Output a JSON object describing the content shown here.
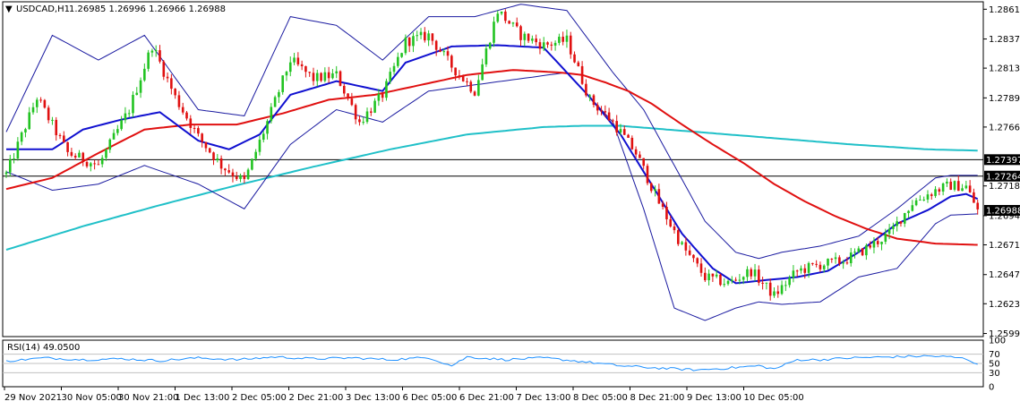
{
  "header": {
    "arrow": "▼",
    "symbol": "USDCAD,H1",
    "ohlc": "1.26985 1.26996 1.26966 1.26988"
  },
  "rsi_header": "RSI(14) 49.0500",
  "colors": {
    "bull": "#22c322",
    "bear": "#e01010",
    "bb": "#1a1aa0",
    "ma_fast": "#1010d0",
    "ma_slow": "#e01010",
    "ma_long": "#20c0c8",
    "rsi": "#1e90ff",
    "price_tag_bg": "#000000",
    "price_tag_fg": "#ffffff"
  },
  "chart_data": {
    "type": "candlestick",
    "symbol": "USDCAD",
    "timeframe": "H1",
    "x_labels": [
      "29 Nov 2021",
      "30 Nov 05:00",
      "30 Nov 21:00",
      "1 Dec 13:00",
      "2 Dec 05:00",
      "2 Dec 21:00",
      "3 Dec 13:00",
      "6 Dec 05:00",
      "6 Dec 21:00",
      "7 Dec 13:00",
      "8 Dec 05:00",
      "8 Dec 21:00",
      "9 Dec 13:00",
      "10 Dec 05:00"
    ],
    "y_ticks": [
      "1.28610",
      "1.28370",
      "1.28135",
      "1.27895",
      "1.27660",
      "1.27185",
      "1.26945",
      "1.26710",
      "1.26470",
      "1.26235",
      "1.25995"
    ],
    "ylim": [
      1.2597,
      1.2867
    ],
    "horizontal_lines": [
      1.27397,
      1.27264
    ],
    "price_tags": [
      "1.27397",
      "1.27264",
      "1.26988"
    ],
    "current_price": 1.26988,
    "overlays": [
      "Bollinger Bands",
      "Moving Average (blue)",
      "Moving Average (red)",
      "Moving Average (cyan)"
    ],
    "close_path": [
      [
        0,
        1.2728
      ],
      [
        8,
        1.279
      ],
      [
        16,
        1.2745
      ],
      [
        24,
        1.2735
      ],
      [
        32,
        1.278
      ],
      [
        38,
        1.2832
      ],
      [
        44,
        1.279
      ],
      [
        50,
        1.2758
      ],
      [
        56,
        1.2735
      ],
      [
        62,
        1.2722
      ],
      [
        68,
        1.277
      ],
      [
        74,
        1.282
      ],
      [
        80,
        1.2805
      ],
      [
        86,
        1.2808
      ],
      [
        92,
        1.277
      ],
      [
        98,
        1.2792
      ],
      [
        104,
        1.2835
      ],
      [
        110,
        1.284
      ],
      [
        116,
        1.2815
      ],
      [
        122,
        1.2795
      ],
      [
        128,
        1.286
      ],
      [
        134,
        1.284
      ],
      [
        140,
        1.2832
      ],
      [
        146,
        1.2836
      ],
      [
        152,
        1.2788
      ],
      [
        158,
        1.277
      ],
      [
        164,
        1.2745
      ],
      [
        170,
        1.2705
      ],
      [
        176,
        1.267
      ],
      [
        182,
        1.2645
      ],
      [
        188,
        1.264
      ],
      [
        194,
        1.265
      ],
      [
        200,
        1.263
      ],
      [
        206,
        1.265
      ],
      [
        212,
        1.2655
      ],
      [
        218,
        1.2658
      ],
      [
        224,
        1.2668
      ],
      [
        230,
        1.268
      ],
      [
        236,
        1.2705
      ],
      [
        242,
        1.2715
      ],
      [
        246,
        1.2719
      ],
      [
        250,
        1.2718
      ],
      [
        253,
        1.26988
      ]
    ],
    "bb_upper_path": [
      [
        0,
        1.2762
      ],
      [
        12,
        1.284
      ],
      [
        24,
        1.282
      ],
      [
        36,
        1.284
      ],
      [
        50,
        1.278
      ],
      [
        62,
        1.2775
      ],
      [
        74,
        1.2855
      ],
      [
        86,
        1.2848
      ],
      [
        98,
        1.282
      ],
      [
        110,
        1.2855
      ],
      [
        122,
        1.2855
      ],
      [
        134,
        1.2865
      ],
      [
        146,
        1.286
      ],
      [
        158,
        1.281
      ],
      [
        166,
        1.278
      ],
      [
        174,
        1.2735
      ],
      [
        182,
        1.269
      ],
      [
        190,
        1.2665
      ],
      [
        196,
        1.266
      ],
      [
        202,
        1.2665
      ],
      [
        212,
        1.267
      ],
      [
        222,
        1.2678
      ],
      [
        232,
        1.27
      ],
      [
        242,
        1.2725
      ],
      [
        246,
        1.2727
      ],
      [
        253,
        1.2727
      ]
    ],
    "bb_lower_path": [
      [
        0,
        1.273
      ],
      [
        12,
        1.2715
      ],
      [
        24,
        1.272
      ],
      [
        36,
        1.2735
      ],
      [
        50,
        1.272
      ],
      [
        62,
        1.27
      ],
      [
        74,
        1.2752
      ],
      [
        86,
        1.278
      ],
      [
        98,
        1.277
      ],
      [
        110,
        1.2795
      ],
      [
        122,
        1.28
      ],
      [
        134,
        1.2805
      ],
      [
        146,
        1.281
      ],
      [
        158,
        1.277
      ],
      [
        166,
        1.27
      ],
      [
        174,
        1.262
      ],
      [
        182,
        1.261
      ],
      [
        190,
        1.262
      ],
      [
        196,
        1.2625
      ],
      [
        202,
        1.2623
      ],
      [
        212,
        1.2625
      ],
      [
        222,
        1.2645
      ],
      [
        232,
        1.2652
      ],
      [
        242,
        1.2688
      ],
      [
        246,
        1.2695
      ],
      [
        253,
        1.2696
      ]
    ],
    "ma_fast_path": [
      [
        0,
        1.2748
      ],
      [
        12,
        1.2748
      ],
      [
        20,
        1.2764
      ],
      [
        30,
        1.2772
      ],
      [
        40,
        1.2778
      ],
      [
        50,
        1.2755
      ],
      [
        58,
        1.2748
      ],
      [
        66,
        1.276
      ],
      [
        74,
        1.2792
      ],
      [
        86,
        1.2803
      ],
      [
        98,
        1.2795
      ],
      [
        104,
        1.2818
      ],
      [
        116,
        1.2831
      ],
      [
        128,
        1.2832
      ],
      [
        140,
        1.283
      ],
      [
        152,
        1.279
      ],
      [
        160,
        1.276
      ],
      [
        168,
        1.272
      ],
      [
        176,
        1.268
      ],
      [
        184,
        1.2652
      ],
      [
        190,
        1.264
      ],
      [
        196,
        1.2642
      ],
      [
        206,
        1.2645
      ],
      [
        214,
        1.265
      ],
      [
        222,
        1.2665
      ],
      [
        232,
        1.2688
      ],
      [
        240,
        1.2699
      ],
      [
        246,
        1.271
      ],
      [
        250,
        1.2712
      ],
      [
        253,
        1.2708
      ]
    ],
    "ma_slow_path": [
      [
        0,
        1.2716
      ],
      [
        12,
        1.2725
      ],
      [
        24,
        1.2745
      ],
      [
        36,
        1.2764
      ],
      [
        48,
        1.2768
      ],
      [
        60,
        1.2768
      ],
      [
        72,
        1.2777
      ],
      [
        84,
        1.2788
      ],
      [
        96,
        1.2792
      ],
      [
        108,
        1.28
      ],
      [
        120,
        1.2808
      ],
      [
        132,
        1.2812
      ],
      [
        144,
        1.281
      ],
      [
        150,
        1.2808
      ],
      [
        156,
        1.2802
      ],
      [
        162,
        1.2795
      ],
      [
        168,
        1.2785
      ],
      [
        176,
        1.2768
      ],
      [
        184,
        1.2752
      ],
      [
        192,
        1.2737
      ],
      [
        200,
        1.272
      ],
      [
        208,
        1.2706
      ],
      [
        216,
        1.2694
      ],
      [
        224,
        1.2684
      ],
      [
        232,
        1.2676
      ],
      [
        242,
        1.2672
      ],
      [
        253,
        1.2671
      ]
    ],
    "ma_long_path": [
      [
        0,
        1.2667
      ],
      [
        20,
        1.2686
      ],
      [
        40,
        1.2703
      ],
      [
        60,
        1.2719
      ],
      [
        80,
        1.2734
      ],
      [
        100,
        1.2748
      ],
      [
        120,
        1.276
      ],
      [
        140,
        1.2766
      ],
      [
        150,
        1.2767
      ],
      [
        160,
        1.2767
      ],
      [
        180,
        1.2762
      ],
      [
        200,
        1.2757
      ],
      [
        220,
        1.2752
      ],
      [
        240,
        1.2748
      ],
      [
        253,
        1.2747
      ]
    ],
    "rsi": {
      "period": 14,
      "value": 49.05,
      "levels": [
        70,
        50,
        30
      ],
      "ylim": [
        0,
        100
      ],
      "y_ticks": [
        "100",
        "70",
        "50",
        "30",
        "0"
      ],
      "path": [
        [
          0,
          55
        ],
        [
          10,
          62
        ],
        [
          20,
          58
        ],
        [
          30,
          60
        ],
        [
          40,
          56
        ],
        [
          50,
          62
        ],
        [
          60,
          58
        ],
        [
          70,
          64
        ],
        [
          80,
          60
        ],
        [
          90,
          62
        ],
        [
          100,
          58
        ],
        [
          110,
          63
        ],
        [
          116,
          45
        ],
        [
          120,
          64
        ],
        [
          130,
          58
        ],
        [
          140,
          62
        ],
        [
          150,
          54
        ],
        [
          160,
          45
        ],
        [
          170,
          40
        ],
        [
          180,
          36
        ],
        [
          188,
          40
        ],
        [
          196,
          45
        ],
        [
          200,
          38
        ],
        [
          206,
          58
        ],
        [
          212,
          58
        ],
        [
          220,
          62
        ],
        [
          230,
          64
        ],
        [
          240,
          66
        ],
        [
          246,
          64
        ],
        [
          250,
          60
        ],
        [
          253,
          49
        ]
      ]
    }
  }
}
